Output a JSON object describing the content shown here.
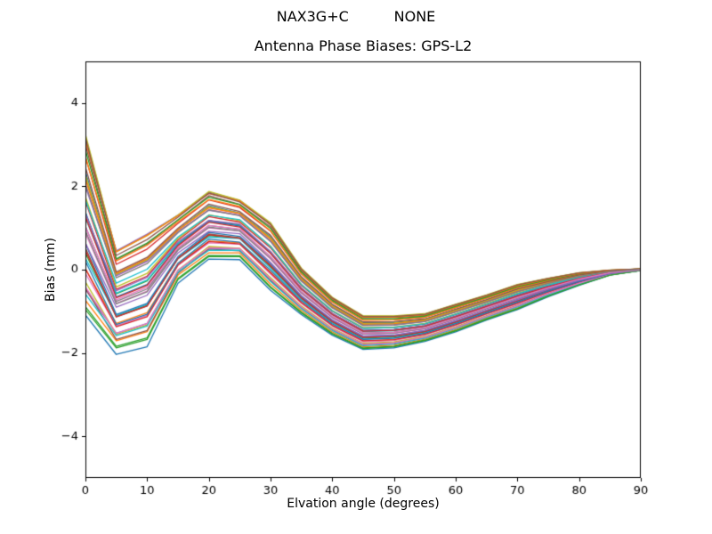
{
  "chart_data": {
    "type": "line",
    "suptitle": "NAX3G+C          NONE",
    "title": "Antenna Phase Biases: GPS-L2",
    "xlabel": "Elvation angle (degrees)",
    "ylabel": "Bias (mm)",
    "xlim": [
      0,
      90
    ],
    "ylim": [
      -5,
      5
    ],
    "xticks": [
      0,
      10,
      20,
      30,
      40,
      50,
      60,
      70,
      80,
      90
    ],
    "xticklabels": [
      "0",
      "10",
      "20",
      "30",
      "40",
      "50",
      "60",
      "70",
      "80",
      "90"
    ],
    "yticks": [
      -4,
      -2,
      0,
      2,
      4
    ],
    "yticklabels": [
      "−4",
      "−2",
      "0",
      "2",
      "4"
    ],
    "grid": false,
    "legend": "none",
    "axis_color": "#000000",
    "background_color": "#ffffff",
    "x": [
      0,
      5,
      10,
      15,
      20,
      25,
      30,
      35,
      40,
      45,
      50,
      55,
      60,
      65,
      70,
      75,
      80,
      85,
      90
    ],
    "ensemble": {
      "mean": [
        1.15,
        -0.7,
        -0.4,
        0.55,
        1.1,
        1.0,
        0.35,
        -0.5,
        -1.1,
        -1.5,
        -1.48,
        -1.38,
        -1.15,
        -0.9,
        -0.65,
        -0.42,
        -0.22,
        -0.07,
        0.0
      ],
      "spread": [
        2.15,
        1.2,
        1.3,
        0.8,
        0.8,
        0.7,
        0.8,
        0.55,
        0.45,
        0.4,
        0.38,
        0.33,
        0.33,
        0.3,
        0.3,
        0.22,
        0.15,
        0.06,
        0.02
      ],
      "jitter_shape": [
        0.6,
        0.9,
        1.0,
        0.5,
        0.3,
        0.4,
        0.3,
        0.2,
        0.15,
        0.1,
        0.1,
        0.1,
        0.1,
        0.08,
        0.06,
        0.05,
        0.03,
        0.01,
        0.0
      ]
    },
    "series": [
      {
        "c": "#1f77b4",
        "t": -1.0,
        "j": -0.15
      },
      {
        "c": "#ff7f0e",
        "t": -0.55,
        "j": 0.08
      },
      {
        "c": "#2ca02c",
        "t": 0.1,
        "j": 0.0
      },
      {
        "c": "#d62728",
        "t": 0.75,
        "j": -0.08
      },
      {
        "c": "#9467bd",
        "t": -0.8,
        "j": 0.15
      },
      {
        "c": "#8c564b",
        "t": -0.25,
        "j": -0.15
      },
      {
        "c": "#e377c2",
        "t": 0.4,
        "j": 0.08
      },
      {
        "c": "#7f7f7f",
        "t": 0.95,
        "j": 0.0
      },
      {
        "c": "#bcbd22",
        "t": -0.65,
        "j": -0.08
      },
      {
        "c": "#17becf",
        "t": 0.0,
        "j": 0.15
      },
      {
        "c": "#1f77b4",
        "t": 0.6,
        "j": -0.15
      },
      {
        "c": "#ff7f0e",
        "t": -0.9,
        "j": 0.08
      },
      {
        "c": "#2ca02c",
        "t": -0.35,
        "j": 0.0
      },
      {
        "c": "#d62728",
        "t": 0.25,
        "j": -0.08
      },
      {
        "c": "#9467bd",
        "t": 0.85,
        "j": 0.15
      },
      {
        "c": "#8c564b",
        "t": -0.7,
        "j": -0.15
      },
      {
        "c": "#e377c2",
        "t": -0.15,
        "j": 0.08
      },
      {
        "c": "#7f7f7f",
        "t": 0.5,
        "j": 0.0
      },
      {
        "c": "#bcbd22",
        "t": 1.0,
        "j": -0.08
      },
      {
        "c": "#17becf",
        "t": -0.45,
        "j": 0.15
      },
      {
        "c": "#1f77b4",
        "t": 0.15,
        "j": -0.15
      },
      {
        "c": "#ff7f0e",
        "t": 0.7,
        "j": 0.08
      },
      {
        "c": "#2ca02c",
        "t": -0.95,
        "j": 0.0
      },
      {
        "c": "#d62728",
        "t": -0.3,
        "j": -0.08
      },
      {
        "c": "#9467bd",
        "t": 0.35,
        "j": 0.15
      },
      {
        "c": "#8c564b",
        "t": 0.9,
        "j": -0.15
      },
      {
        "c": "#e377c2",
        "t": -0.6,
        "j": 0.08
      },
      {
        "c": "#7f7f7f",
        "t": -0.05,
        "j": 0.0
      },
      {
        "c": "#bcbd22",
        "t": 0.55,
        "j": -0.08
      },
      {
        "c": "#17becf",
        "t": -0.85,
        "j": 0.15
      },
      {
        "c": "#1f77b4",
        "t": -0.2,
        "j": -0.15
      },
      {
        "c": "#ff7f0e",
        "t": 0.45,
        "j": 0.08
      },
      {
        "c": "#2ca02c",
        "t": 0.8,
        "j": 0.0
      },
      {
        "c": "#d62728",
        "t": -0.5,
        "j": -0.08
      },
      {
        "c": "#9467bd",
        "t": 0.05,
        "j": 0.15
      },
      {
        "c": "#8c564b",
        "t": 0.65,
        "j": -0.15
      },
      {
        "c": "#e377c2",
        "t": -0.75,
        "j": 0.08
      },
      {
        "c": "#7f7f7f",
        "t": -0.1,
        "j": 0.0
      },
      {
        "c": "#bcbd22",
        "t": 0.3,
        "j": -0.08
      },
      {
        "c": "#17becf",
        "t": 0.2,
        "j": 0.15
      },
      {
        "c": "#1f77b4",
        "t": -0.4,
        "j": -0.15
      },
      {
        "c": "#ff7f0e",
        "t": 0.88,
        "j": 0.08
      },
      {
        "c": "#2ca02c",
        "t": -0.98,
        "j": 0.0
      },
      {
        "c": "#d62728",
        "t": 0.08,
        "j": -0.08
      },
      {
        "c": "#9467bd",
        "t": -0.28,
        "j": 0.15
      },
      {
        "c": "#8c564b",
        "t": 0.98,
        "j": -0.15
      },
      {
        "c": "#e377c2",
        "t": -0.08,
        "j": 0.08
      },
      {
        "c": "#7f7f7f",
        "t": 0.42,
        "j": 0.0
      }
    ]
  }
}
